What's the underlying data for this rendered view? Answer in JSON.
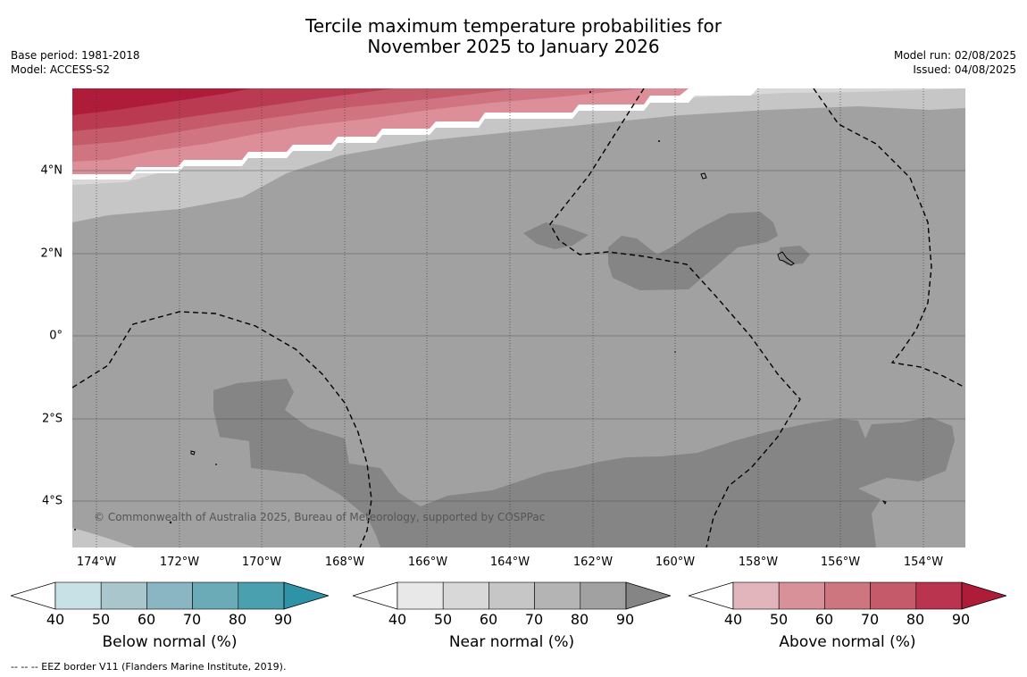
{
  "title": {
    "line1": "Tercile maximum temperature probabilities for",
    "line2": "November 2025 to January 2026"
  },
  "meta_left": {
    "base_period": "Base period: 1981-2018",
    "model": "Model: ACCESS-S2"
  },
  "meta_right": {
    "model_run": "Model run: 02/08/2025",
    "issued": "Issued: 04/08/2025"
  },
  "map": {
    "lon_labels": [
      "174°W",
      "172°W",
      "170°W",
      "168°W",
      "166°W",
      "164°W",
      "162°W",
      "160°W",
      "158°W",
      "156°W",
      "154°W"
    ],
    "lat_labels": [
      "4°N",
      "2°N",
      "0°",
      "2°S",
      "4°S"
    ],
    "copyright": "© Commonwealth of Australia 2025, Bureau of Meteorology, supported by COSPPac",
    "colors": {
      "near_50": "#d8d8d8",
      "near_60": "#c6c6c6",
      "near_80": "#a1a1a1",
      "near_90": "#858585",
      "above_50": "#dd8f99",
      "above_60": "#cf7480",
      "above_70": "#c45a6a",
      "above_80": "#ba3a51",
      "above_90": "#ae1c3a"
    }
  },
  "colorbars": {
    "below": {
      "title": "Below normal (%)",
      "ticks": [
        "40",
        "50",
        "60",
        "70",
        "80",
        "90"
      ],
      "colors": [
        "#ffffff",
        "#c8e1e7",
        "#a8c6cc",
        "#8ab6c3",
        "#6babb8",
        "#4ba0b0",
        "#2e93a7"
      ]
    },
    "near": {
      "title": "Near normal (%)",
      "ticks": [
        "40",
        "50",
        "60",
        "70",
        "80",
        "90"
      ],
      "colors": [
        "#ffffff",
        "#e8e8e8",
        "#d8d8d8",
        "#c6c6c6",
        "#b4b4b4",
        "#a1a1a1",
        "#858585"
      ]
    },
    "above": {
      "title": "Above normal (%)",
      "ticks": [
        "40",
        "50",
        "60",
        "70",
        "80",
        "90"
      ],
      "colors": [
        "#ffffff",
        "#e2b5bc",
        "#d99199",
        "#ce7680",
        "#c45a6a",
        "#ba3450",
        "#ae1c3a"
      ]
    }
  },
  "footnote": "-- -- -- EEZ border V11 (Flanders Marine Institute, 2019)."
}
